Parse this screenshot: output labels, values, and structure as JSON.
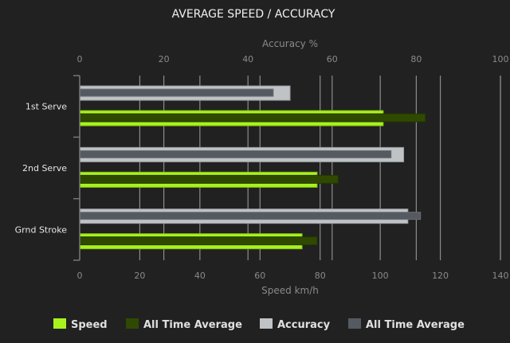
{
  "chart_data": {
    "type": "bar",
    "orientation": "horizontal",
    "title": "AVERAGE SPEED / ACCURACY",
    "categories": [
      "1st Serve",
      "2nd Serve",
      "Grnd Stroke"
    ],
    "top_axis": {
      "label": "Accuracy %",
      "range": [
        0,
        100
      ],
      "ticks": [
        0,
        20,
        40,
        60,
        80,
        100
      ]
    },
    "bottom_axis": {
      "label": "Speed km/h",
      "range": [
        0,
        140
      ],
      "ticks": [
        0,
        20,
        40,
        60,
        80,
        100,
        120,
        140
      ]
    },
    "grid": true,
    "legend_position": "bottom",
    "series": [
      {
        "name": "Speed",
        "axis": "bottom",
        "color": "#a8f21e",
        "values": [
          101,
          79,
          74
        ]
      },
      {
        "name": "All Time Average",
        "axis": "bottom",
        "color": "#2f4a00",
        "values": [
          115,
          86,
          79
        ]
      },
      {
        "name": "Accuracy",
        "axis": "top",
        "color": "#bfc3c6",
        "values": [
          50,
          77,
          78
        ]
      },
      {
        "name": "All Time Average",
        "axis": "top",
        "color": "#555a61",
        "values": [
          46,
          74,
          81
        ]
      }
    ]
  }
}
